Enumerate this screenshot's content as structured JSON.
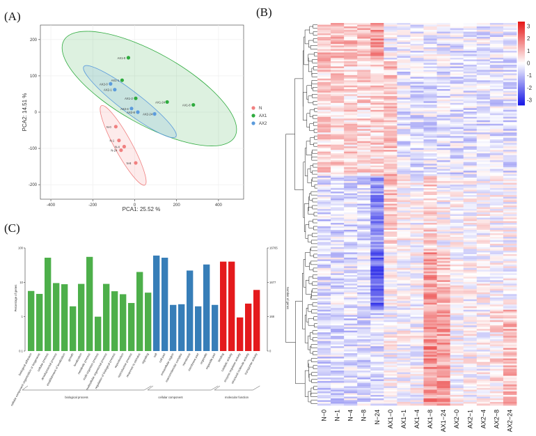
{
  "panels": {
    "a": "(A)",
    "b": "(B)",
    "c": "(C)"
  },
  "pca": {
    "type": "scatter",
    "xlabel": "PCA1: 25.52 %",
    "ylabel": "PCA2: 14.51 %",
    "xlim": [
      -450,
      520
    ],
    "ylim": [
      -240,
      240
    ],
    "xticks": [
      "-400",
      "-200",
      "0",
      "200",
      "400"
    ],
    "xtickvals": [
      -400,
      -200,
      0,
      200,
      400
    ],
    "yticks": [
      "200",
      "100",
      "0",
      "-100",
      "-200"
    ],
    "ytickvals": [
      200,
      100,
      0,
      -100,
      -200
    ],
    "legend": [
      {
        "name": "N",
        "color": "#f08080"
      },
      {
        "name": "AX1",
        "color": "#2eab3e"
      },
      {
        "name": "AX2",
        "color": "#5b9bdc"
      }
    ],
    "points": [
      {
        "g": "AX1",
        "label": "AX1-0",
        "x": -30,
        "y": 150
      },
      {
        "g": "AX1",
        "label": "AX1-1",
        "x": -60,
        "y": 88
      },
      {
        "g": "AX1",
        "label": "AX1-2",
        "x": 5,
        "y": 38
      },
      {
        "g": "AX1",
        "label": "AX1-24",
        "x": 155,
        "y": 28
      },
      {
        "g": "AX1",
        "label": "AX1-8",
        "x": 280,
        "y": 20
      },
      {
        "g": "AX2",
        "label": "AX2-0",
        "x": -115,
        "y": 78
      },
      {
        "g": "AX2",
        "label": "AX2-1",
        "x": -95,
        "y": 62
      },
      {
        "g": "AX2",
        "label": "AX2-4",
        "x": -15,
        "y": 10
      },
      {
        "g": "AX2",
        "label": "AX2-8",
        "x": 15,
        "y": 0
      },
      {
        "g": "AX2",
        "label": "AX2-24",
        "x": 95,
        "y": -5
      },
      {
        "g": "N",
        "label": "N-0",
        "x": -90,
        "y": -40
      },
      {
        "g": "N",
        "label": "N-1",
        "x": -75,
        "y": -78
      },
      {
        "g": "N",
        "label": "N-4",
        "x": -50,
        "y": -95
      },
      {
        "g": "N",
        "label": "N-24",
        "x": -65,
        "y": -105
      },
      {
        "g": "N",
        "label": "N-8",
        "x": 5,
        "y": -140
      }
    ]
  },
  "heatmap": {
    "columns": [
      "N−0",
      "N−1",
      "N−4",
      "N−8",
      "N−24",
      "AX1−0",
      "AX1−1",
      "AX1−4",
      "AX1−8",
      "AX1−24",
      "AX2−0",
      "AX2−1",
      "AX2−4",
      "AX2−8",
      "AX2−24"
    ],
    "colorbar_ticks": [
      "3",
      "2",
      "1",
      "0",
      "-1",
      "-2",
      "-3"
    ],
    "colorbar_vals": [
      3,
      2,
      1,
      0,
      -1,
      -2,
      -3
    ],
    "range": [
      -3.4,
      3.4
    ],
    "colors": {
      "low": "#1a1ae6",
      "mid": "#ffffff",
      "high": "#e61a1a"
    }
  },
  "go": {
    "type": "bar",
    "ylabel_left": "Percentage of genes",
    "ylabel_right": "Number of genes",
    "left_ticks": [
      "100",
      "10",
      "1",
      "0.1"
    ],
    "right_ticks": [
      "16765",
      "1677",
      "168",
      "0"
    ],
    "groups": [
      {
        "name": "biological process",
        "color": "#4daf4a"
      },
      {
        "name": "cellular component",
        "color": "#377eb8"
      },
      {
        "name": "molecular function",
        "color": "#e41a1c"
      }
    ],
    "categories": [
      {
        "label": "biological adhesion",
        "g": 0,
        "v": 5.6
      },
      {
        "label": "cellular component organization or biogenesis",
        "g": 0,
        "v": 4.6
      },
      {
        "label": "cellular process",
        "g": 0,
        "v": 52
      },
      {
        "label": "developmental process",
        "g": 0,
        "v": 9.5
      },
      {
        "label": "establishment of localization",
        "g": 0,
        "v": 8.8
      },
      {
        "label": "growth",
        "g": 0,
        "v": 2.0
      },
      {
        "label": "localization",
        "g": 0,
        "v": 9.0
      },
      {
        "label": "metabolic process",
        "g": 0,
        "v": 55
      },
      {
        "label": "multi-organism process",
        "g": 0,
        "v": 1.0
      },
      {
        "label": "multicellular organismal process",
        "g": 0,
        "v": 9.0
      },
      {
        "label": "regulation of biological process",
        "g": 0,
        "v": 5.5
      },
      {
        "label": "reproduction",
        "g": 0,
        "v": 4.5
      },
      {
        "label": "reproductive process",
        "g": 0,
        "v": 2.5
      },
      {
        "label": "response to stimulus",
        "g": 0,
        "v": 20
      },
      {
        "label": "signaling",
        "g": 0,
        "v": 5.0
      },
      {
        "label": "cell",
        "g": 1,
        "v": 60
      },
      {
        "label": "cell part",
        "g": 1,
        "v": 52
      },
      {
        "label": "extracellular region",
        "g": 1,
        "v": 2.2
      },
      {
        "label": "macromolecular complex",
        "g": 1,
        "v": 2.3
      },
      {
        "label": "membrane",
        "g": 1,
        "v": 22
      },
      {
        "label": "membrane part",
        "g": 1,
        "v": 2.0
      },
      {
        "label": "organelle",
        "g": 1,
        "v": 33
      },
      {
        "label": "organelle part",
        "g": 1,
        "v": 2.2
      },
      {
        "label": "binding",
        "g": 2,
        "v": 40
      },
      {
        "label": "catalytic activity",
        "g": 2,
        "v": 40
      },
      {
        "label": "enzyme regulator activity",
        "g": 2,
        "v": 0.95
      },
      {
        "label": "structural molecule activity",
        "g": 2,
        "v": 2.4
      },
      {
        "label": "transporter activity",
        "g": 2,
        "v": 6.0
      }
    ]
  }
}
